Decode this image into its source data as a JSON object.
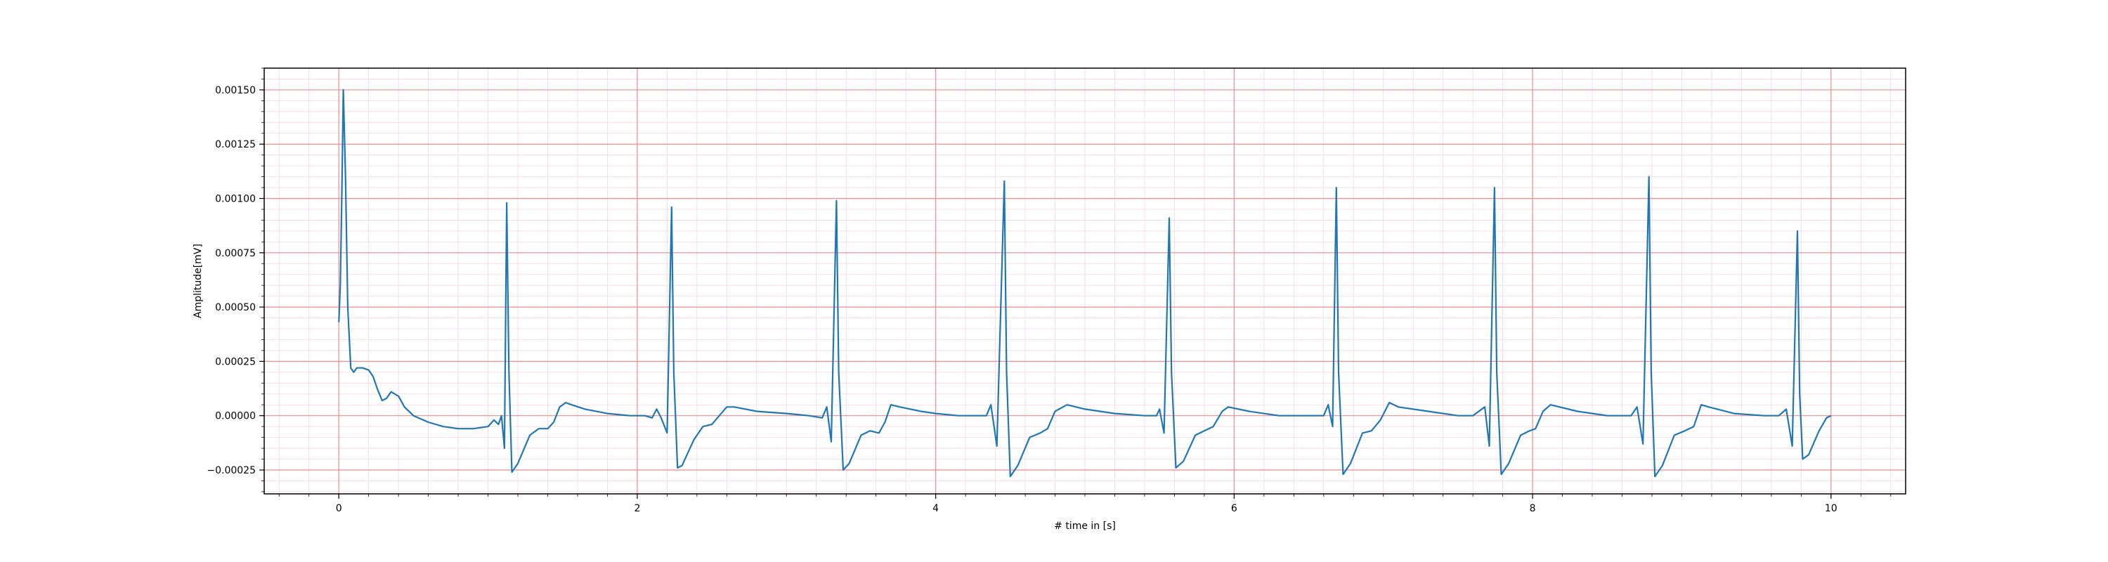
{
  "chart_data": {
    "type": "line",
    "xlabel": "# time in [s]",
    "ylabel": "Amplitude[mV]",
    "xlim": [
      -0.5,
      10.5
    ],
    "ylim": [
      -0.00036,
      0.0016
    ],
    "grid": {
      "major": true,
      "minor": true,
      "major_color": "#f28b8b",
      "minor_color": "#f7d3e6"
    },
    "x_ticks": [
      {
        "value": 0,
        "label": "0"
      },
      {
        "value": 2,
        "label": "2"
      },
      {
        "value": 4,
        "label": "4"
      },
      {
        "value": 6,
        "label": "6"
      },
      {
        "value": 8,
        "label": "8"
      },
      {
        "value": 10,
        "label": "10"
      }
    ],
    "y_ticks": [
      {
        "value": -0.00025,
        "label": "−0.00025"
      },
      {
        "value": 0.0,
        "label": "0.00000"
      },
      {
        "value": 0.00025,
        "label": "0.00025"
      },
      {
        "value": 0.0005,
        "label": "0.00050"
      },
      {
        "value": 0.00075,
        "label": "0.00075"
      },
      {
        "value": 0.001,
        "label": "0.00100"
      },
      {
        "value": 0.00125,
        "label": "0.00125"
      },
      {
        "value": 0.0015,
        "label": "0.00150"
      }
    ],
    "series": [
      {
        "color": "#1f77b4",
        "points": [
          [
            0.0,
            0.00043
          ],
          [
            0.01,
            0.0006
          ],
          [
            0.02,
            0.001
          ],
          [
            0.03,
            0.0015
          ],
          [
            0.045,
            0.0011
          ],
          [
            0.06,
            0.0005
          ],
          [
            0.08,
            0.00022
          ],
          [
            0.1,
            0.0002
          ],
          [
            0.12,
            0.00022
          ],
          [
            0.16,
            0.00022
          ],
          [
            0.2,
            0.00021
          ],
          [
            0.23,
            0.00018
          ],
          [
            0.26,
            0.00012
          ],
          [
            0.29,
            7e-05
          ],
          [
            0.32,
            8e-05
          ],
          [
            0.35,
            0.00011
          ],
          [
            0.4,
            9e-05
          ],
          [
            0.44,
            4e-05
          ],
          [
            0.5,
            0.0
          ],
          [
            0.6,
            -3e-05
          ],
          [
            0.7,
            -5e-05
          ],
          [
            0.8,
            -6e-05
          ],
          [
            0.9,
            -6e-05
          ],
          [
            1.0,
            -5e-05
          ],
          [
            1.04,
            -2e-05
          ],
          [
            1.07,
            -4e-05
          ],
          [
            1.09,
            0.0
          ],
          [
            1.11,
            -0.00015
          ],
          [
            1.125,
            0.00098
          ],
          [
            1.14,
            0.0002
          ],
          [
            1.16,
            -0.00026
          ],
          [
            1.2,
            -0.00022
          ],
          [
            1.28,
            -9e-05
          ],
          [
            1.34,
            -6e-05
          ],
          [
            1.4,
            -6e-05
          ],
          [
            1.44,
            -3e-05
          ],
          [
            1.48,
            4e-05
          ],
          [
            1.52,
            6e-05
          ],
          [
            1.56,
            5e-05
          ],
          [
            1.65,
            3e-05
          ],
          [
            1.8,
            1e-05
          ],
          [
            1.95,
            0.0
          ],
          [
            2.05,
            0.0
          ],
          [
            2.1,
            -1e-05
          ],
          [
            2.13,
            3e-05
          ],
          [
            2.16,
            -1e-05
          ],
          [
            2.2,
            -8e-05
          ],
          [
            2.23,
            0.00096
          ],
          [
            2.245,
            0.0002
          ],
          [
            2.27,
            -0.00024
          ],
          [
            2.3,
            -0.00023
          ],
          [
            2.38,
            -0.00011
          ],
          [
            2.44,
            -5e-05
          ],
          [
            2.5,
            -4e-05
          ],
          [
            2.55,
            0.0
          ],
          [
            2.6,
            4e-05
          ],
          [
            2.65,
            4e-05
          ],
          [
            2.8,
            2e-05
          ],
          [
            3.0,
            1e-05
          ],
          [
            3.15,
            0.0
          ],
          [
            3.24,
            -1e-05
          ],
          [
            3.27,
            4e-05
          ],
          [
            3.3,
            -0.00012
          ],
          [
            3.335,
            0.00099
          ],
          [
            3.35,
            0.0002
          ],
          [
            3.38,
            -0.00025
          ],
          [
            3.42,
            -0.00022
          ],
          [
            3.5,
            -9e-05
          ],
          [
            3.56,
            -7e-05
          ],
          [
            3.62,
            -8e-05
          ],
          [
            3.66,
            -3e-05
          ],
          [
            3.7,
            5e-05
          ],
          [
            3.76,
            4e-05
          ],
          [
            3.9,
            2e-05
          ],
          [
            4.0,
            1e-05
          ],
          [
            4.15,
            0.0
          ],
          [
            4.34,
            0.0
          ],
          [
            4.37,
            5e-05
          ],
          [
            4.41,
            -0.00014
          ],
          [
            4.46,
            0.00108
          ],
          [
            4.475,
            0.0002
          ],
          [
            4.5,
            -0.00028
          ],
          [
            4.55,
            -0.00023
          ],
          [
            4.63,
            -0.0001
          ],
          [
            4.7,
            -8e-05
          ],
          [
            4.75,
            -6e-05
          ],
          [
            4.8,
            2e-05
          ],
          [
            4.88,
            5e-05
          ],
          [
            5.0,
            3e-05
          ],
          [
            5.2,
            1e-05
          ],
          [
            5.4,
            0.0
          ],
          [
            5.48,
            0.0
          ],
          [
            5.5,
            3e-05
          ],
          [
            5.53,
            -8e-05
          ],
          [
            5.565,
            0.00091
          ],
          [
            5.58,
            0.0002
          ],
          [
            5.61,
            -0.00024
          ],
          [
            5.66,
            -0.00021
          ],
          [
            5.74,
            -9e-05
          ],
          [
            5.8,
            -7e-05
          ],
          [
            5.86,
            -5e-05
          ],
          [
            5.92,
            2e-05
          ],
          [
            5.96,
            4e-05
          ],
          [
            6.1,
            2e-05
          ],
          [
            6.3,
            0.0
          ],
          [
            6.5,
            0.0
          ],
          [
            6.6,
            0.0
          ],
          [
            6.63,
            5e-05
          ],
          [
            6.66,
            -5e-05
          ],
          [
            6.685,
            0.00105
          ],
          [
            6.7,
            0.0002
          ],
          [
            6.73,
            -0.00027
          ],
          [
            6.78,
            -0.00022
          ],
          [
            6.86,
            -8e-05
          ],
          [
            6.92,
            -7e-05
          ],
          [
            6.98,
            -2e-05
          ],
          [
            7.04,
            6e-05
          ],
          [
            7.1,
            4e-05
          ],
          [
            7.3,
            2e-05
          ],
          [
            7.5,
            0.0
          ],
          [
            7.6,
            0.0
          ],
          [
            7.68,
            4e-05
          ],
          [
            7.71,
            -0.00014
          ],
          [
            7.745,
            0.00105
          ],
          [
            7.76,
            0.0002
          ],
          [
            7.79,
            -0.00027
          ],
          [
            7.84,
            -0.00022
          ],
          [
            7.92,
            -9e-05
          ],
          [
            7.98,
            -7e-05
          ],
          [
            8.02,
            -6e-05
          ],
          [
            8.07,
            2e-05
          ],
          [
            8.12,
            5e-05
          ],
          [
            8.3,
            2e-05
          ],
          [
            8.5,
            0.0
          ],
          [
            8.66,
            0.0
          ],
          [
            8.7,
            4e-05
          ],
          [
            8.74,
            -0.00013
          ],
          [
            8.78,
            0.0011
          ],
          [
            8.795,
            0.0002
          ],
          [
            8.82,
            -0.00028
          ],
          [
            8.87,
            -0.00023
          ],
          [
            8.95,
            -9e-05
          ],
          [
            9.02,
            -7e-05
          ],
          [
            9.08,
            -5e-05
          ],
          [
            9.13,
            5e-05
          ],
          [
            9.18,
            4e-05
          ],
          [
            9.35,
            1e-05
          ],
          [
            9.55,
            0.0
          ],
          [
            9.65,
            0.0
          ],
          [
            9.7,
            3e-05
          ],
          [
            9.74,
            -0.00014
          ],
          [
            9.775,
            0.00085
          ],
          [
            9.79,
            0.0001
          ],
          [
            9.81,
            -0.0002
          ],
          [
            9.85,
            -0.00018
          ],
          [
            9.92,
            -7e-05
          ],
          [
            9.97,
            -1e-05
          ],
          [
            10.0,
            0.0
          ]
        ]
      }
    ]
  }
}
